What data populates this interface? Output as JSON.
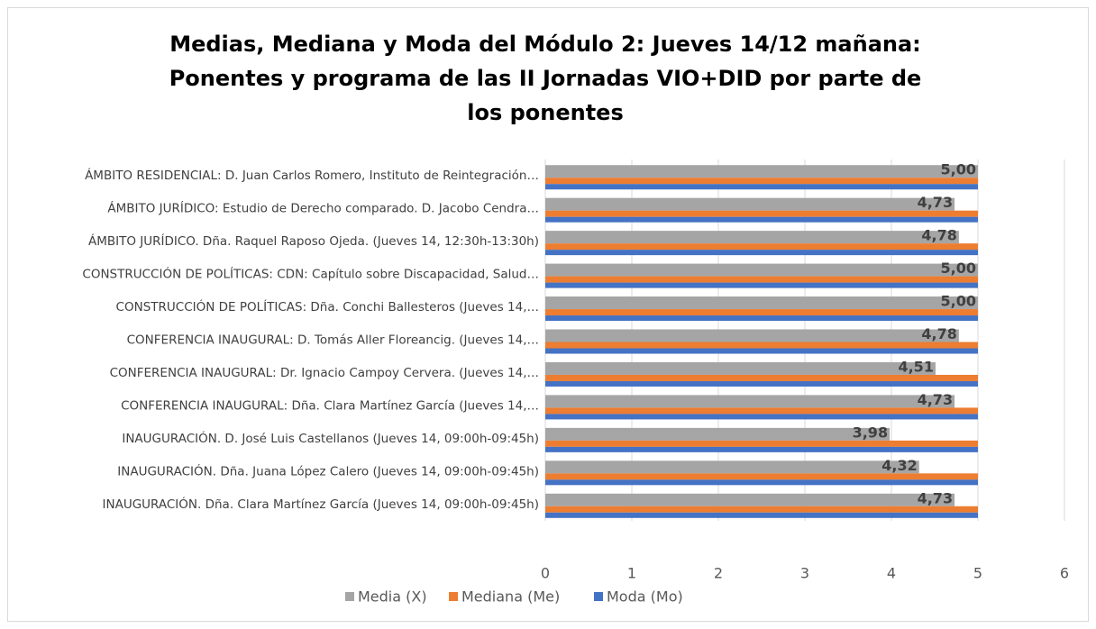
{
  "chart_data": {
    "type": "hbar",
    "title": "Medias, Mediana y Moda del Módulo 2: Jueves 14/12 mañana: Ponentes y programa de las II Jornadas VIO+DID por parte de los ponentes",
    "categories": [
      "ÁMBITO RESIDENCIAL: D. Juan Carlos Romero, Instituto de Reintegración…",
      "ÁMBITO JURÍDICO: Estudio de Derecho comparado. D. Jacobo Cendra…",
      "ÁMBITO JURÍDICO. Dña. Raquel Raposo Ojeda. (Jueves 14, 12:30h-13:30h)",
      "CONSTRUCCIÓN DE POLÍTICAS:  CDN: Capítulo sobre Discapacidad, Salud…",
      "CONSTRUCCIÓN DE POLÍTICAS: Dña. Conchi Ballesteros (Jueves 14,…",
      "CONFERENCIA INAUGURAL: D. Tomás Aller Floreancig. (Jueves 14,…",
      "CONFERENCIA INAUGURAL: Dr. Ignacio Campoy Cervera. (Jueves 14,…",
      "CONFERENCIA INAUGURAL: Dña. Clara Martínez García (Jueves 14,…",
      "INAUGURACIÓN. D. José Luis Castellanos (Jueves 14, 09:00h-09:45h)",
      "INAUGURACIÓN. Dña. Juana López Calero (Jueves 14, 09:00h-09:45h)",
      "INAUGURACIÓN. Dña. Clara Martínez García (Jueves 14, 09:00h-09:45h)"
    ],
    "series": [
      {
        "name": "Media (X)",
        "color": "#a5a5a5",
        "values": [
          5.0,
          4.73,
          4.78,
          5.0,
          5.0,
          4.78,
          4.51,
          4.73,
          3.98,
          4.32,
          4.73
        ],
        "value_labels": [
          "5,00",
          "4,73",
          "4,78",
          "5,00",
          "5,00",
          "4,78",
          "4,51",
          "4,73",
          "3,98",
          "4,32",
          "4,73"
        ]
      },
      {
        "name": "Mediana (Me)",
        "color": "#ed7d31",
        "values": [
          5,
          5,
          5,
          5,
          5,
          5,
          5,
          5,
          5,
          5,
          5
        ]
      },
      {
        "name": "Moda (Mo)",
        "color": "#4472c4",
        "values": [
          5,
          5,
          5,
          5,
          5,
          5,
          5,
          5,
          5,
          5,
          5
        ]
      }
    ],
    "xlim": [
      0,
      6
    ],
    "xticks": [
      0,
      1,
      2,
      3,
      4,
      5,
      6
    ],
    "grid": true,
    "legend": "bottom"
  }
}
